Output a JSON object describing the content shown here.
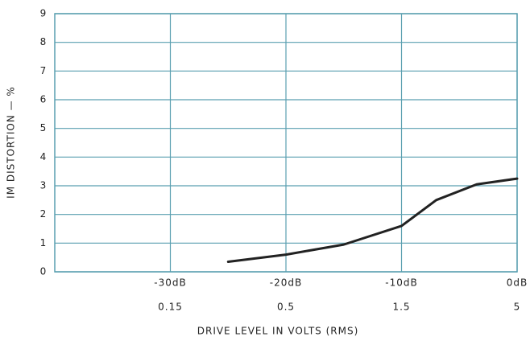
{
  "chart_data": {
    "type": "line",
    "xlabel": "DRIVE LEVEL IN VOLTS (RMS)",
    "ylabel": "IM DISTORTION — %",
    "series": [
      {
        "name": "IM distortion",
        "color": "#222222",
        "x": [
          -25,
          -20,
          -15,
          -10,
          -7,
          -3.5,
          0
        ],
        "values": [
          0.35,
          0.6,
          0.95,
          1.6,
          2.5,
          3.05,
          3.25
        ]
      }
    ],
    "xlim": [
      -40,
      0
    ],
    "xticks": [
      {
        "value": -30,
        "label": "-30dB"
      },
      {
        "value": -20,
        "label": "-20dB"
      },
      {
        "value": -10,
        "label": "-10dB"
      },
      {
        "value": 0,
        "label": "0dB"
      }
    ],
    "x2ticks": [
      {
        "value": -30,
        "label": "0.15"
      },
      {
        "value": -20,
        "label": "0.5"
      },
      {
        "value": -10,
        "label": "1.5"
      },
      {
        "value": 0,
        "label": "5"
      }
    ],
    "ylim": [
      0,
      9
    ],
    "yticks": [
      0,
      1,
      2,
      3,
      4,
      5,
      6,
      7,
      8,
      9
    ],
    "grid": true,
    "grid_color": "#5a9fb0"
  }
}
